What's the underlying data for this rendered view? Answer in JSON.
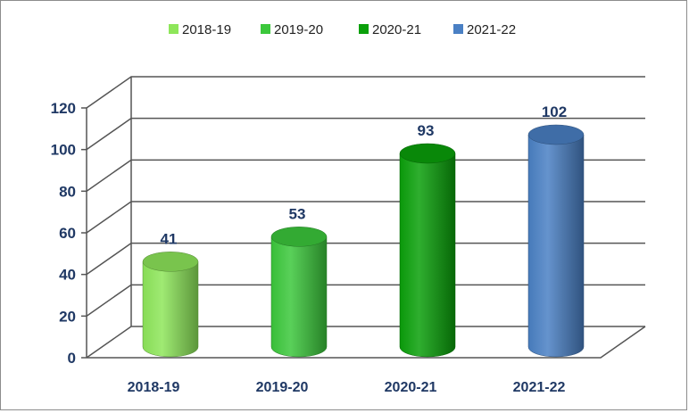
{
  "chart_data": {
    "type": "bar",
    "style": "3d-cylinder",
    "title": "",
    "xlabel": "",
    "ylabel": "",
    "categories": [
      "2018-19",
      "2019-20",
      "2020-21",
      "2021-22"
    ],
    "values": [
      41,
      53,
      93,
      102
    ],
    "data_labels": [
      "41",
      "53",
      "93",
      "102"
    ],
    "ylim": [
      0,
      120
    ],
    "yticks": [
      0,
      20,
      40,
      60,
      80,
      100,
      120
    ],
    "ytick_labels": [
      "0",
      "20",
      "40",
      "60",
      "80",
      "100",
      "120"
    ],
    "grid": true,
    "legend": {
      "position": "top",
      "entries": [
        "2018-19",
        "2019-20",
        "2020-21",
        "2021-22"
      ]
    },
    "colors": [
      "#8ee65a",
      "#3cc83c",
      "#0aa00a",
      "#4a80c4"
    ]
  }
}
